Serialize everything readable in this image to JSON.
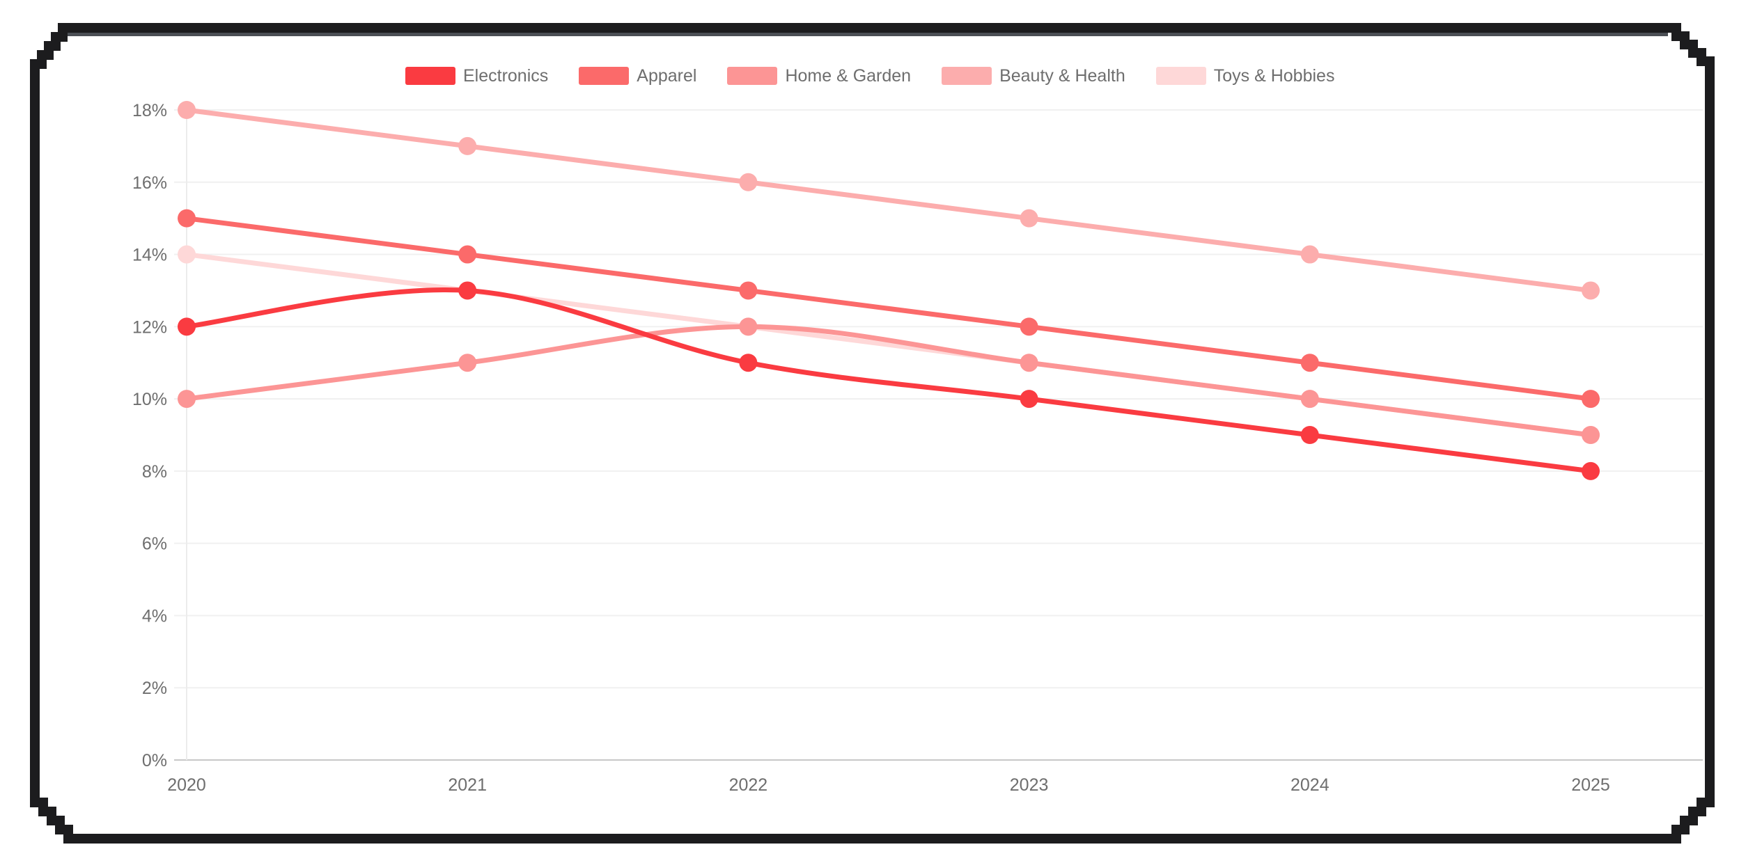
{
  "page": {
    "background": "#ffffff",
    "frame_color": "#1c1c1e",
    "frame_accent_color": "#4b4f55"
  },
  "axis": {
    "label_color": "#6e6e6e",
    "grid_color": "#f0f0f0",
    "baseline_color": "#c8c8c8",
    "axisline_color": "#ececec"
  },
  "chart_data": {
    "type": "line",
    "title": "",
    "xlabel": "",
    "ylabel": "",
    "categories": [
      "2020",
      "2021",
      "2022",
      "2023",
      "2024",
      "2025"
    ],
    "series": [
      {
        "name": "Electronics",
        "color": "#fa3b41",
        "values": [
          12,
          13,
          11,
          10,
          9,
          8
        ]
      },
      {
        "name": "Apparel",
        "color": "#fb6a6a",
        "values": [
          15,
          14,
          13,
          12,
          11,
          10
        ]
      },
      {
        "name": "Home & Garden",
        "color": "#fc9595",
        "values": [
          10,
          11,
          12,
          11,
          10,
          9
        ]
      },
      {
        "name": "Beauty & Health",
        "color": "#fcadad",
        "values": [
          18,
          17,
          16,
          15,
          14,
          13
        ]
      },
      {
        "name": "Toys & Hobbies",
        "color": "#fed8d8",
        "values": [
          14,
          13,
          12,
          11,
          10,
          9
        ]
      }
    ],
    "ylim": [
      0,
      18
    ],
    "y_tick_labels": [
      "0%",
      "2%",
      "4%",
      "6%",
      "8%",
      "10%",
      "12%",
      "14%",
      "16%",
      "18%"
    ],
    "grid": true,
    "legend_position": "top",
    "smooth": true,
    "markers": true
  }
}
